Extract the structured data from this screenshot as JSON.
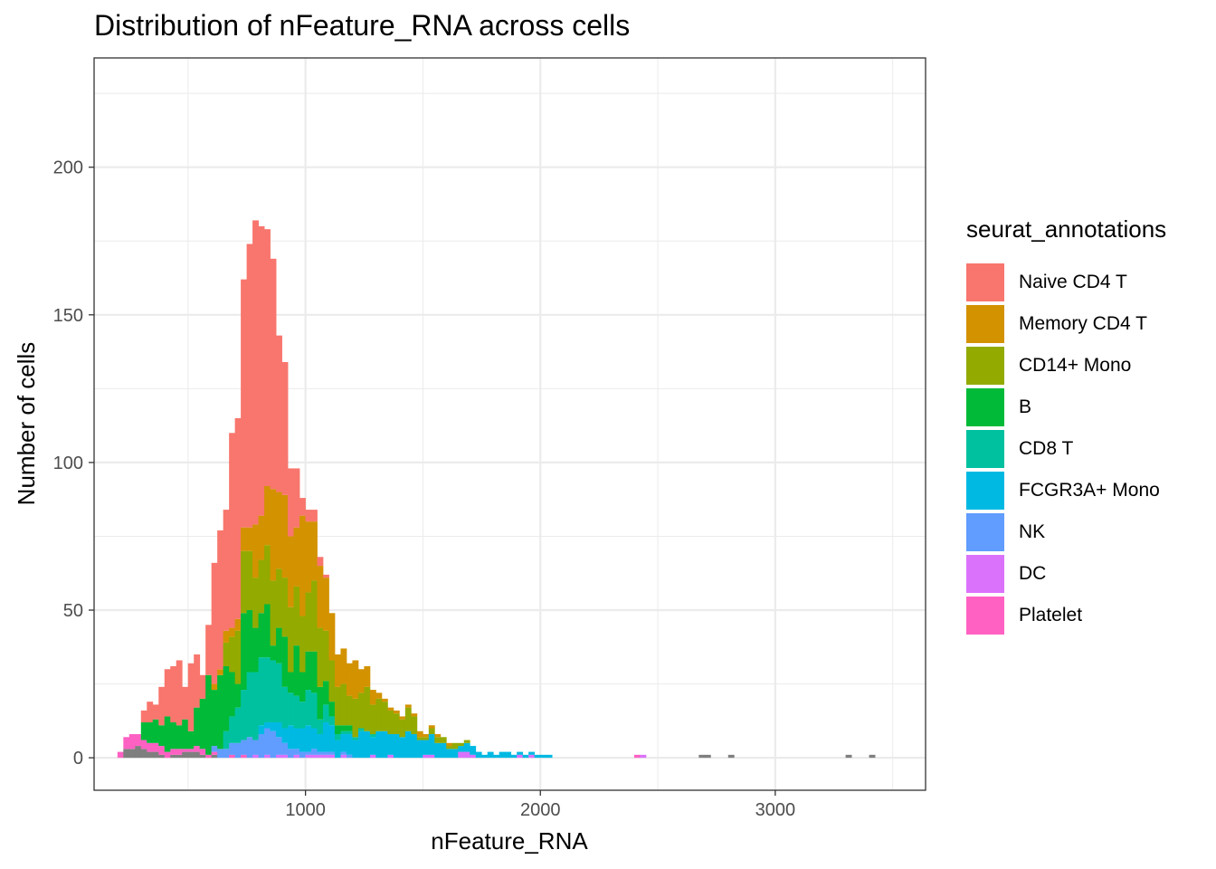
{
  "chart_data": {
    "type": "bar",
    "stacked": true,
    "title": "Distribution of nFeature_RNA across cells",
    "xlabel": "nFeature_RNA",
    "ylabel": "Number of cells",
    "xlim": [
      100,
      3640
    ],
    "ylim": [
      -11,
      237
    ],
    "xticks": [
      1000,
      2000,
      3000
    ],
    "yticks": [
      0,
      50,
      100,
      150,
      200
    ],
    "grid": true,
    "legend": {
      "title": "seurat_annotations",
      "placement": "right"
    },
    "bin_width": 25,
    "x": [
      212,
      237,
      262,
      287,
      312,
      337,
      362,
      387,
      412,
      437,
      462,
      487,
      512,
      537,
      562,
      587,
      612,
      637,
      662,
      687,
      712,
      737,
      762,
      787,
      812,
      837,
      862,
      887,
      912,
      937,
      962,
      987,
      1012,
      1037,
      1062,
      1087,
      1112,
      1137,
      1162,
      1187,
      1212,
      1237,
      1262,
      1287,
      1312,
      1337,
      1362,
      1387,
      1412,
      1437,
      1462,
      1487,
      1512,
      1537,
      1562,
      1587,
      1612,
      1637,
      1662,
      1687,
      1712,
      1737,
      1762,
      1787,
      1812,
      1837,
      1862,
      1887,
      1912,
      1937,
      1962,
      1987,
      2012,
      2037,
      2412,
      2437,
      2687,
      2712,
      2812,
      3312,
      3412
    ],
    "series": [
      {
        "name": "Naive CD4 T",
        "color": "#F8766D",
        "values": [
          0,
          0,
          0,
          0,
          4,
          7,
          5,
          13,
          16,
          19,
          22,
          11,
          23,
          18,
          8,
          17,
          41,
          47,
          41,
          66,
          68,
          84,
          96,
          103,
          98,
          87,
          78,
          53,
          45,
          23,
          20,
          6,
          4,
          4,
          3,
          1,
          0,
          0,
          0,
          0,
          0,
          0,
          0,
          0,
          0,
          0,
          0,
          0,
          0,
          0,
          0,
          0,
          0,
          0,
          0,
          0,
          0,
          0,
          0,
          0,
          0,
          0,
          0,
          0,
          0,
          0,
          0,
          0,
          0,
          0,
          0,
          0,
          0,
          0,
          0,
          0,
          0,
          0,
          0,
          0,
          0
        ]
      },
      {
        "name": "Memory CD4 T",
        "color": "#D39200",
        "values": [
          0,
          0,
          0,
          0,
          0,
          0,
          0,
          0,
          0,
          0,
          0,
          0,
          0,
          0,
          0,
          0,
          2,
          2,
          4,
          3,
          4,
          8,
          8,
          18,
          15,
          20,
          31,
          26,
          28,
          24,
          20,
          34,
          24,
          20,
          21,
          18,
          16,
          11,
          12,
          11,
          13,
          8,
          7,
          5,
          2,
          1,
          1,
          1,
          1,
          1,
          1,
          2,
          1,
          1,
          1,
          0,
          1,
          0,
          0,
          0,
          0,
          0,
          0,
          0,
          0,
          0,
          0,
          0,
          0,
          0,
          0,
          0,
          0,
          0,
          0,
          0,
          0,
          0,
          0,
          0,
          0
        ]
      },
      {
        "name": "CD14+ Mono",
        "color": "#93AA00",
        "values": [
          0,
          0,
          0,
          0,
          0,
          0,
          0,
          0,
          0,
          0,
          0,
          0,
          0,
          0,
          0,
          0,
          0,
          0,
          8,
          12,
          18,
          21,
          20,
          17,
          18,
          20,
          22,
          20,
          20,
          22,
          20,
          19,
          20,
          24,
          20,
          17,
          14,
          13,
          14,
          10,
          13,
          12,
          15,
          10,
          11,
          10,
          8,
          7,
          6,
          8,
          6,
          1,
          1,
          2,
          2,
          2,
          1,
          2,
          1,
          1,
          0,
          0,
          0,
          0,
          0,
          0,
          0,
          0,
          0,
          0,
          0,
          0,
          0,
          0,
          0,
          0,
          0,
          0,
          0,
          0,
          0
        ]
      },
      {
        "name": "B",
        "color": "#00BA38",
        "values": [
          0,
          0,
          0,
          0,
          6,
          7,
          8,
          7,
          12,
          9,
          8,
          10,
          6,
          13,
          17,
          27,
          19,
          25,
          22,
          15,
          8,
          26,
          21,
          15,
          15,
          18,
          5,
          12,
          17,
          7,
          17,
          10,
          13,
          14,
          11,
          8,
          5,
          3,
          2,
          2,
          0,
          0,
          0,
          0,
          0,
          0,
          0,
          0,
          0,
          0,
          0,
          0,
          0,
          0,
          0,
          0,
          0,
          0,
          0,
          0,
          0,
          0,
          0,
          0,
          0,
          0,
          0,
          0,
          0,
          0,
          0,
          0,
          0,
          0,
          0,
          0,
          0,
          0,
          0,
          0,
          0
        ]
      },
      {
        "name": "CD8 T",
        "color": "#00C19F",
        "values": [
          0,
          0,
          0,
          0,
          0,
          0,
          0,
          0,
          0,
          0,
          0,
          0,
          0,
          0,
          0,
          0,
          0,
          0,
          6,
          9,
          12,
          17,
          22,
          23,
          23,
          22,
          21,
          20,
          14,
          11,
          11,
          9,
          12,
          12,
          5,
          6,
          3,
          2,
          1,
          1,
          1,
          1,
          0,
          1,
          0,
          0,
          0,
          0,
          0,
          0,
          0,
          0,
          0,
          0,
          0,
          0,
          0,
          0,
          0,
          0,
          0,
          0,
          0,
          0,
          0,
          0,
          0,
          0,
          0,
          0,
          0,
          0,
          0,
          0,
          0,
          0,
          0,
          0,
          0,
          0,
          0
        ]
      },
      {
        "name": "FCGR3A+ Mono",
        "color": "#00B9E3",
        "values": [
          0,
          0,
          0,
          0,
          0,
          0,
          0,
          0,
          0,
          0,
          0,
          0,
          0,
          0,
          0,
          0,
          0,
          0,
          0,
          0,
          0,
          0,
          0,
          0,
          3,
          2,
          3,
          5,
          5,
          8,
          7,
          8,
          9,
          7,
          6,
          10,
          9,
          6,
          6,
          7,
          6,
          9,
          9,
          6,
          9,
          9,
          7,
          8,
          7,
          9,
          8,
          6,
          5,
          7,
          5,
          5,
          3,
          3,
          2,
          3,
          3,
          2,
          1,
          2,
          1,
          2,
          2,
          1,
          1,
          1,
          1,
          1,
          1,
          1,
          0,
          0,
          0,
          0,
          0,
          0,
          0
        ]
      },
      {
        "name": "NK",
        "color": "#619CFF",
        "values": [
          0,
          0,
          0,
          0,
          0,
          0,
          0,
          0,
          0,
          0,
          0,
          0,
          0,
          0,
          0,
          0,
          2,
          3,
          3,
          4,
          5,
          5,
          7,
          5,
          8,
          9,
          9,
          6,
          4,
          3,
          2,
          2,
          1,
          2,
          1,
          1,
          1,
          0,
          1,
          1,
          0,
          0,
          0,
          0,
          0,
          0,
          0,
          0,
          0,
          0,
          0,
          0,
          0,
          0,
          0,
          0,
          0,
          0,
          0,
          0,
          0,
          0,
          0,
          0,
          0,
          0,
          0,
          0,
          0,
          0,
          0,
          0,
          0,
          0,
          0,
          0,
          0,
          0,
          0,
          0,
          0
        ]
      },
      {
        "name": "DC",
        "color": "#DB72FB",
        "values": [
          0,
          0,
          0,
          0,
          0,
          0,
          0,
          0,
          0,
          0,
          0,
          0,
          0,
          0,
          0,
          0,
          0,
          0,
          0,
          0,
          0,
          0,
          0,
          1,
          0,
          1,
          0,
          1,
          1,
          0,
          1,
          0,
          1,
          1,
          1,
          1,
          1,
          0,
          1,
          0,
          0,
          0,
          0,
          1,
          0,
          0,
          1,
          0,
          0,
          0,
          0,
          0,
          1,
          1,
          0,
          0,
          0,
          0,
          2,
          2,
          1,
          0,
          0,
          0,
          0,
          0,
          0,
          0,
          1,
          0,
          1,
          0,
          0,
          0,
          0,
          1,
          0,
          0,
          0,
          0,
          0
        ]
      },
      {
        "name": "Platelet",
        "color": "#FF61C3",
        "values": [
          2,
          4,
          5,
          4,
          3,
          3,
          3,
          3,
          2,
          2,
          2,
          1,
          1,
          2,
          2,
          1,
          1,
          0,
          0,
          1,
          0,
          1,
          0,
          0,
          0,
          0,
          0,
          0,
          0,
          0,
          0,
          0,
          0,
          0,
          0,
          0,
          0,
          0,
          0,
          0,
          0,
          0,
          0,
          0,
          0,
          0,
          0,
          0,
          0,
          0,
          0,
          0,
          0,
          0,
          0,
          0,
          0,
          0,
          0,
          0,
          0,
          0,
          0,
          0,
          0,
          0,
          0,
          0,
          0,
          0,
          0,
          0,
          0,
          0,
          1,
          0,
          0,
          0,
          0,
          0,
          0
        ]
      },
      {
        "name": "",
        "color": "#7F7F7F",
        "values": [
          0,
          3,
          3,
          4,
          3,
          2,
          2,
          1,
          0,
          1,
          1,
          2,
          2,
          2,
          1,
          0,
          1,
          0,
          0,
          0,
          0,
          0,
          0,
          0,
          0,
          0,
          0,
          0,
          0,
          0,
          0,
          0,
          0,
          0,
          0,
          0,
          0,
          0,
          0,
          0,
          0,
          0,
          0,
          0,
          0,
          0,
          0,
          0,
          0,
          0,
          0,
          0,
          0,
          0,
          0,
          0,
          0,
          0,
          0,
          0,
          0,
          0,
          0,
          0,
          0,
          0,
          0,
          0,
          0,
          0,
          0,
          0,
          0,
          0,
          0,
          0,
          1,
          1,
          1,
          1,
          1
        ]
      }
    ]
  }
}
